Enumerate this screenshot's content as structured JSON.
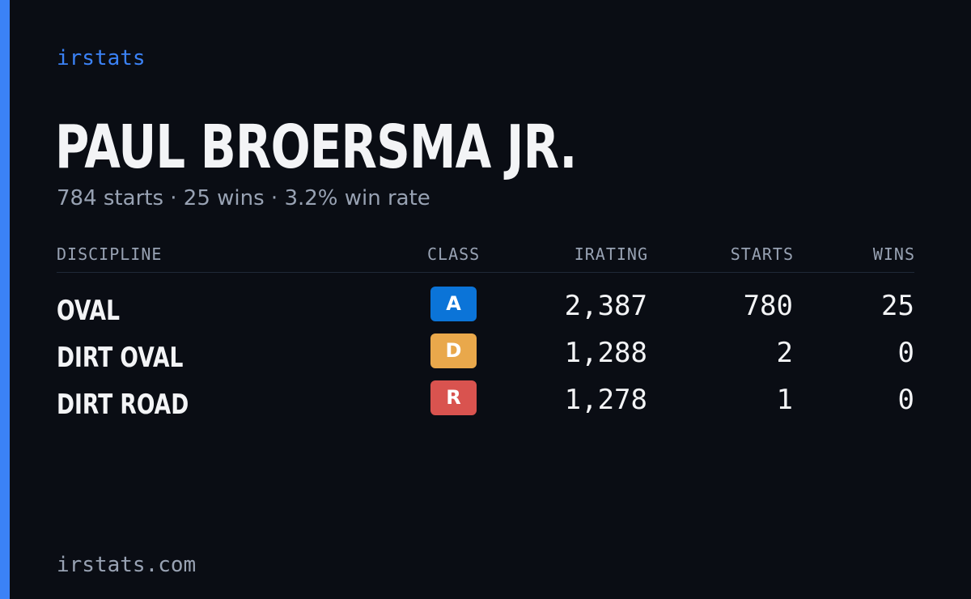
{
  "brand": "irstats",
  "driver": {
    "name": "PAUL BROERSMA JR.",
    "summary": "784 starts · 25 wins · 3.2% win rate"
  },
  "table": {
    "headers": {
      "discipline": "DISCIPLINE",
      "class": "CLASS",
      "irating": "IRATING",
      "starts": "STARTS",
      "wins": "WINS"
    },
    "rows": [
      {
        "discipline": "OVAL",
        "class": "A",
        "class_color": "#0b74d8",
        "irating": "2,387",
        "starts": "780",
        "wins": "25"
      },
      {
        "discipline": "DIRT OVAL",
        "class": "D",
        "class_color": "#e9a84b",
        "irating": "1,288",
        "starts": "2",
        "wins": "0"
      },
      {
        "discipline": "DIRT ROAD",
        "class": "R",
        "class_color": "#d9534f",
        "irating": "1,278",
        "starts": "1",
        "wins": "0"
      }
    ]
  },
  "footer": "irstats.com",
  "colors": {
    "accent": "#3b82f6",
    "background": "#0a0d14"
  }
}
